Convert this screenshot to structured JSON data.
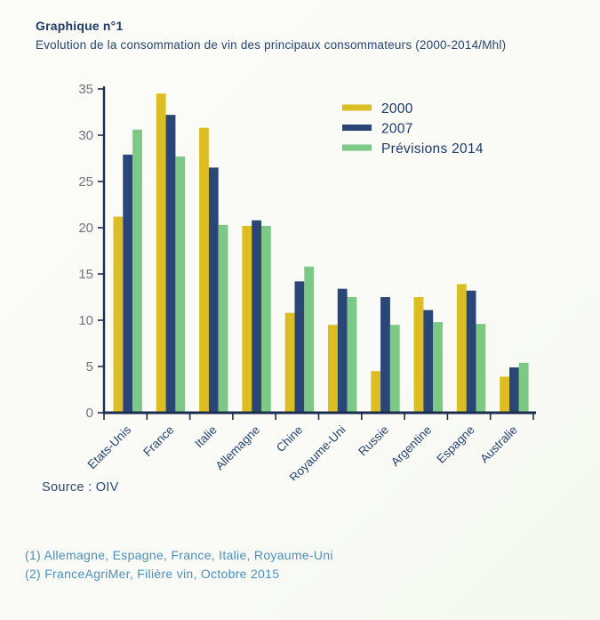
{
  "header": {
    "title": "Graphique n°1",
    "subtitle": "Evolution de la consommation de vin des principaux consommateurs (2000-2014/Mhl)"
  },
  "chart_data": {
    "type": "bar",
    "title": "Graphique n°1 — Evolution de la consommation de vin des principaux consommateurs (2000-2014/Mhl)",
    "categories": [
      "Etats-Unis",
      "France",
      "Italie",
      "Allemagne",
      "Chine",
      "Royaume-Uni",
      "Russie",
      "Argentine",
      "Espagne",
      "Australie"
    ],
    "series": [
      {
        "name": "2000",
        "color": "#dcbe22",
        "values": [
          21.2,
          34.5,
          30.8,
          20.2,
          10.8,
          9.5,
          4.5,
          12.5,
          13.9,
          3.9
        ]
      },
      {
        "name": "2007",
        "color": "#2a4677",
        "values": [
          27.9,
          32.2,
          26.5,
          20.8,
          14.2,
          13.4,
          12.5,
          11.1,
          13.2,
          4.9
        ]
      },
      {
        "name": "Prévisions 2014",
        "color": "#7cc985",
        "values": [
          30.6,
          27.7,
          20.3,
          20.2,
          15.8,
          12.5,
          9.5,
          9.8,
          9.6,
          5.4
        ]
      }
    ],
    "xlabel": "",
    "ylabel": "",
    "ylim": [
      0,
      35
    ],
    "yticks": [
      0,
      5,
      10,
      15,
      20,
      25,
      30,
      35
    ],
    "grid": false,
    "legend_position": "upper-right",
    "x_tick_label_rotation_deg": 45,
    "axis_color": "#1b2c4e",
    "y_tick_label_color": "#6e7480",
    "x_tick_label_color": "#24436e",
    "legend_text_color": "#1d3b66"
  },
  "source": {
    "label": "Source : OIV"
  },
  "footnotes": {
    "color": "#4a90be",
    "line1": "(1) Allemagne, Espagne, France, Italie, Royaume-Uni",
    "line2": "(2) FranceAgriMer, Filière vin, Octobre 2015"
  }
}
